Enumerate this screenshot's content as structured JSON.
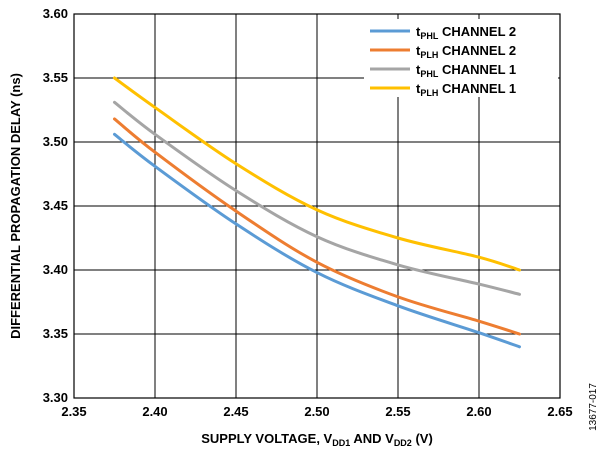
{
  "figure_id": "13677-017",
  "chart_data": {
    "type": "line",
    "xlabel": {
      "main": "SUPPLY VOLTAGE, V",
      "sub1": "DD1",
      "mid": " AND V",
      "sub2": "DD2",
      "end": " (V)"
    },
    "ylabel": "DIFFERENTIAL PROPAGATION DELAY (ns)",
    "xlim": [
      2.35,
      2.65
    ],
    "ylim": [
      3.3,
      3.6
    ],
    "x_ticks": [
      2.35,
      2.4,
      2.45,
      2.5,
      2.55,
      2.6,
      2.65
    ],
    "x_tick_labels": [
      "2.35",
      "2.40",
      "2.45",
      "2.50",
      "2.55",
      "2.60",
      "2.65"
    ],
    "y_ticks": [
      3.3,
      3.35,
      3.4,
      3.45,
      3.5,
      3.55,
      3.6
    ],
    "y_tick_labels": [
      "3.30",
      "3.35",
      "3.40",
      "3.45",
      "3.50",
      "3.55",
      "3.60"
    ],
    "grid": true,
    "legend_position": "top-right",
    "x": [
      2.375,
      2.4,
      2.45,
      2.5,
      2.55,
      2.6,
      2.625
    ],
    "series": [
      {
        "name_main": "t",
        "name_sub": "PHL",
        "name_rest": " CHANNEL 2",
        "color": "#5b9bd5",
        "values": [
          3.506,
          3.481,
          3.436,
          3.398,
          3.372,
          3.351,
          3.34
        ]
      },
      {
        "name_main": "t",
        "name_sub": "PLH",
        "name_rest": " CHANNEL 2",
        "color": "#ed7d31",
        "values": [
          3.518,
          3.492,
          3.446,
          3.406,
          3.379,
          3.36,
          3.35
        ]
      },
      {
        "name_main": "t",
        "name_sub": "PHL",
        "name_rest": " CHANNEL 1",
        "color": "#a5a5a5",
        "values": [
          3.531,
          3.506,
          3.462,
          3.426,
          3.404,
          3.389,
          3.381
        ]
      },
      {
        "name_main": "t",
        "name_sub": "PLH",
        "name_rest": " CHANNEL 1",
        "color": "#ffc000",
        "values": [
          3.55,
          3.527,
          3.483,
          3.447,
          3.425,
          3.41,
          3.4
        ]
      }
    ]
  }
}
